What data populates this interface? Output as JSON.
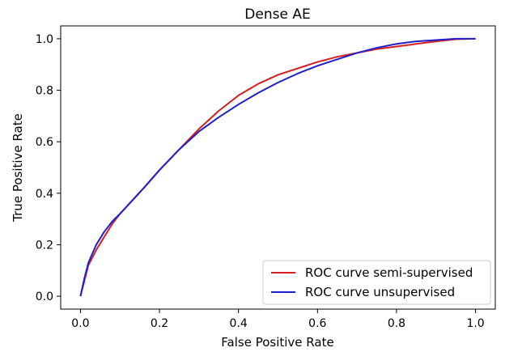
{
  "chart_data": {
    "type": "line",
    "title": "Dense AE",
    "xlabel": "False Positive Rate",
    "ylabel": "True Positive Rate",
    "xlim": [
      -0.05,
      1.05
    ],
    "ylim": [
      -0.05,
      1.05
    ],
    "xticks": [
      0.0,
      0.2,
      0.4,
      0.6,
      0.8,
      1.0
    ],
    "yticks": [
      0.0,
      0.2,
      0.4,
      0.6,
      0.8,
      1.0
    ],
    "xtick_labels": [
      "0.0",
      "0.2",
      "0.4",
      "0.6",
      "0.8",
      "1.0"
    ],
    "ytick_labels": [
      "0.0",
      "0.2",
      "0.4",
      "0.6",
      "0.8",
      "1.0"
    ],
    "grid": false,
    "legend_position": "bottom-right",
    "series": [
      {
        "name": "ROC curve semi-supervised",
        "color": "#d62020",
        "x": [
          0.0,
          0.01,
          0.02,
          0.04,
          0.06,
          0.08,
          0.1,
          0.13,
          0.16,
          0.2,
          0.25,
          0.3,
          0.35,
          0.4,
          0.45,
          0.5,
          0.55,
          0.6,
          0.65,
          0.7,
          0.75,
          0.8,
          0.85,
          0.9,
          0.95,
          1.0
        ],
        "y": [
          0.0,
          0.06,
          0.12,
          0.18,
          0.23,
          0.28,
          0.32,
          0.37,
          0.42,
          0.49,
          0.57,
          0.65,
          0.72,
          0.78,
          0.825,
          0.86,
          0.885,
          0.91,
          0.93,
          0.945,
          0.96,
          0.97,
          0.98,
          0.99,
          0.998,
          1.0
        ]
      },
      {
        "name": "ROC curve unsupervised",
        "color": "#1f1fcf",
        "x": [
          0.0,
          0.01,
          0.02,
          0.04,
          0.06,
          0.08,
          0.1,
          0.13,
          0.16,
          0.2,
          0.25,
          0.3,
          0.35,
          0.4,
          0.45,
          0.5,
          0.55,
          0.6,
          0.65,
          0.7,
          0.75,
          0.8,
          0.85,
          0.9,
          0.95,
          1.0
        ],
        "y": [
          0.0,
          0.07,
          0.13,
          0.2,
          0.25,
          0.29,
          0.32,
          0.37,
          0.42,
          0.49,
          0.57,
          0.64,
          0.695,
          0.745,
          0.79,
          0.83,
          0.865,
          0.895,
          0.92,
          0.945,
          0.965,
          0.98,
          0.99,
          0.995,
          1.0,
          1.0
        ]
      }
    ]
  }
}
